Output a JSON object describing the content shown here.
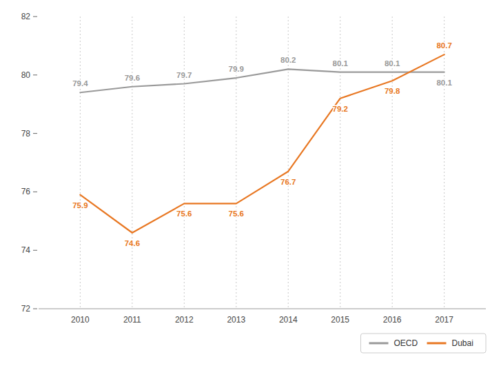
{
  "chart_data": {
    "type": "line",
    "x": [
      2010,
      2011,
      2012,
      2013,
      2014,
      2015,
      2016,
      2017
    ],
    "xlim": [
      2009.2,
      2017.8
    ],
    "xticks": [
      2010,
      2011,
      2012,
      2013,
      2014,
      2015,
      2016,
      2017
    ],
    "ylim": [
      72,
      82
    ],
    "yticks": [
      72,
      74,
      76,
      78,
      80,
      82
    ],
    "grid": "x",
    "legend": "bottom",
    "data_labels": true,
    "series": [
      {
        "name": "OECD",
        "color": "#999999",
        "values": [
          79.4,
          79.6,
          79.7,
          79.9,
          80.2,
          80.1,
          80.1,
          80.1
        ]
      },
      {
        "name": "Dubai",
        "color": "#E87722",
        "values": [
          75.9,
          74.6,
          75.6,
          75.6,
          76.7,
          79.2,
          79.8,
          80.7
        ]
      }
    ]
  }
}
